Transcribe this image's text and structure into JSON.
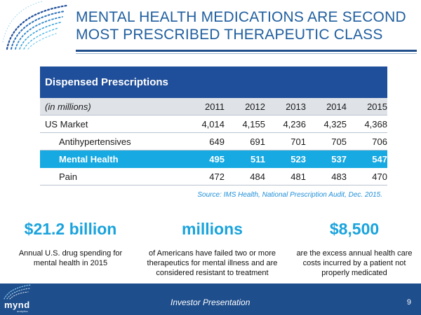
{
  "slide": {
    "title": "MENTAL HEALTH MEDICATIONS ARE SECOND MOST PRESCRIBED THERAPEUTIC CLASS"
  },
  "table": {
    "heading": "Dispensed Prescriptions",
    "units_label": "(in millions)",
    "years": [
      "2011",
      "2012",
      "2013",
      "2014",
      "2015"
    ],
    "rows": [
      {
        "label": "US Market",
        "values": [
          "4,014",
          "4,155",
          "4,236",
          "4,325",
          "4,368"
        ]
      },
      {
        "label": "Antihypertensives",
        "values": [
          "649",
          "691",
          "701",
          "705",
          "706"
        ]
      },
      {
        "label": "Mental Health",
        "values": [
          "495",
          "511",
          "523",
          "537",
          "547"
        ]
      },
      {
        "label": "Pain",
        "values": [
          "472",
          "484",
          "481",
          "483",
          "470"
        ]
      }
    ],
    "source": "Source: IMS Health, National Prescription Audit, Dec. 2015."
  },
  "stats": [
    {
      "headline": "$21.2 billion",
      "description": "Annual U.S. drug spending for mental health in 2015"
    },
    {
      "headline": "millions",
      "description": "of Americans have failed two or more therapeutics for mental illness and are considered resistant to treatment"
    },
    {
      "headline": "$8,500",
      "description": "are the excess annual health care costs incurred by a patient not properly medicated"
    }
  ],
  "footer": {
    "logo_text": "mynd",
    "logo_sub": "analytics",
    "presentation_label": "Investor Presentation",
    "page_number": "9"
  },
  "colors": {
    "title_blue": "#1f5e9e",
    "table_header": "#1f4e9a",
    "highlight_row": "#17a9e1",
    "stat_blue": "#1aa3dc",
    "footer": "#1f4e8c"
  }
}
